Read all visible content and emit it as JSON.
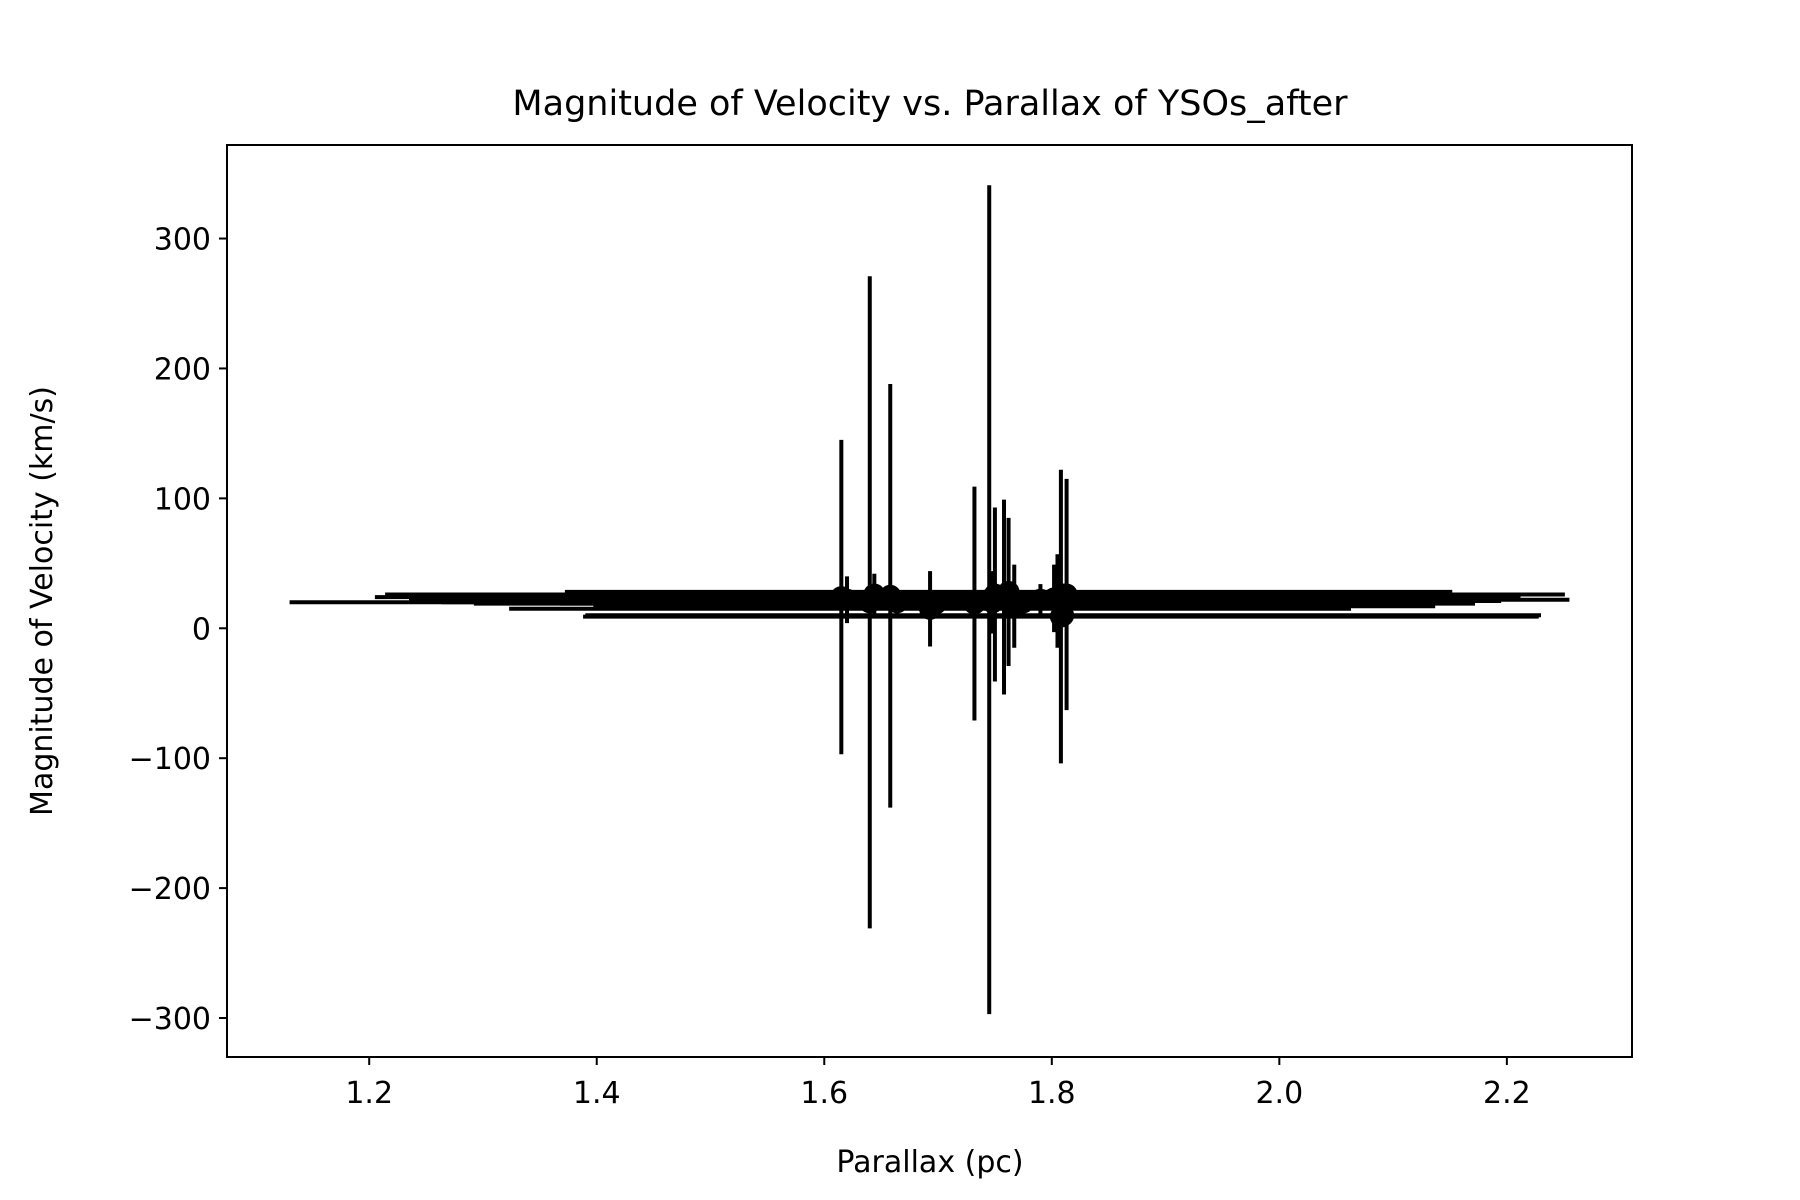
{
  "chart_data": {
    "type": "scatter",
    "title": "Magnitude of Velocity vs. Parallax of YSOs_after",
    "xlabel": "Parallax (pc)",
    "ylabel": "Magnitude of Velocity (km/s)",
    "xlim": [
      1.075,
      2.31
    ],
    "ylim": [
      -330,
      372
    ],
    "xticks": [
      1.2,
      1.4,
      1.6,
      1.8,
      2.0,
      2.2
    ],
    "xtick_labels": [
      "1.2",
      "1.4",
      "1.6",
      "1.8",
      "2.0",
      "2.2"
    ],
    "yticks": [
      -300,
      -200,
      -100,
      0,
      100,
      200,
      300
    ],
    "ytick_labels": [
      "−300",
      "−200",
      "−100",
      "0",
      "100",
      "200",
      "300"
    ],
    "grid": false,
    "marker_color": "#000000",
    "points": [
      {
        "x": 1.615,
        "y": 24,
        "xerr": 0.41,
        "yerr": 121
      },
      {
        "x": 1.62,
        "y": 22,
        "xerr": 0.38,
        "yerr": 18
      },
      {
        "x": 1.64,
        "y": 20,
        "xerr": 0.51,
        "yerr": 251
      },
      {
        "x": 1.644,
        "y": 26,
        "xerr": 0.43,
        "yerr": 16
      },
      {
        "x": 1.658,
        "y": 25,
        "xerr": 0.42,
        "yerr": 163
      },
      {
        "x": 1.664,
        "y": 20,
        "xerr": 0.4,
        "yerr": 10
      },
      {
        "x": 1.693,
        "y": 15,
        "xerr": 0.37,
        "yerr": 29
      },
      {
        "x": 1.698,
        "y": 19,
        "xerr": 0.33,
        "yerr": 8
      },
      {
        "x": 1.732,
        "y": 19,
        "xerr": 0.44,
        "yerr": 90
      },
      {
        "x": 1.745,
        "y": 22,
        "xerr": 0.51,
        "yerr": 319
      },
      {
        "x": 1.748,
        "y": 20,
        "xerr": 0.36,
        "yerr": 24
      },
      {
        "x": 1.75,
        "y": 26,
        "xerr": 0.42,
        "yerr": 67
      },
      {
        "x": 1.758,
        "y": 24,
        "xerr": 0.4,
        "yerr": 75
      },
      {
        "x": 1.762,
        "y": 28,
        "xerr": 0.39,
        "yerr": 57
      },
      {
        "x": 1.767,
        "y": 17,
        "xerr": 0.37,
        "yerr": 32
      },
      {
        "x": 1.775,
        "y": 20,
        "xerr": 0.34,
        "yerr": 9
      },
      {
        "x": 1.79,
        "y": 22,
        "xerr": 0.36,
        "yerr": 12
      },
      {
        "x": 1.802,
        "y": 23,
        "xerr": 0.41,
        "yerr": 26
      },
      {
        "x": 1.805,
        "y": 21,
        "xerr": 0.39,
        "yerr": 36
      },
      {
        "x": 1.808,
        "y": 9,
        "xerr": 0.42,
        "yerr": 113
      },
      {
        "x": 1.81,
        "y": 10,
        "xerr": 0.42,
        "yerr": 8
      },
      {
        "x": 1.811,
        "y": 26,
        "xerr": 0.44,
        "yerr": 7
      },
      {
        "x": 1.813,
        "y": 26,
        "xerr": 0.42,
        "yerr": 89
      }
    ]
  }
}
